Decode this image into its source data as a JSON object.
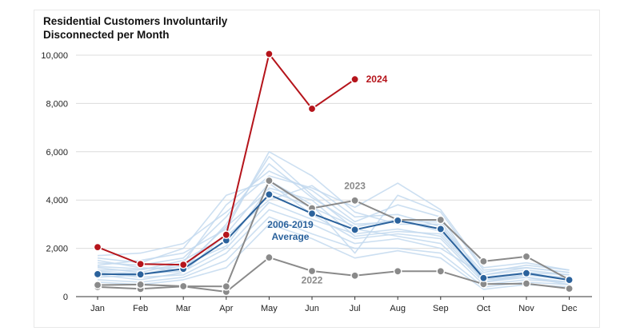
{
  "chart_data": {
    "type": "line",
    "title": "Residential Customers Involuntarily Disconnected per Month",
    "title_lines": [
      "Residential Customers Involuntarily",
      "Disconnected per Month"
    ],
    "categories": [
      "Jan",
      "Feb",
      "Mar",
      "Apr",
      "May",
      "Jun",
      "Jul",
      "Aug",
      "Sep",
      "Oct",
      "Nov",
      "Dec"
    ],
    "ylim": [
      0,
      10000
    ],
    "yticks": [
      0,
      2000,
      4000,
      6000,
      8000,
      10000
    ],
    "ytick_labels": [
      "0",
      "2,000",
      "4,000",
      "6,000",
      "8,000",
      "10,000"
    ],
    "grid": true,
    "series": [
      {
        "name": "2024",
        "color": "#b5141b",
        "role": "highlight",
        "values": [
          2050,
          1350,
          1320,
          2560,
          10050,
          7780,
          9000,
          null,
          null,
          null,
          null,
          null
        ]
      },
      {
        "name": "2006-2019 Average",
        "color": "#2b629c",
        "role": "highlight",
        "values": [
          930,
          920,
          1150,
          2330,
          4230,
          3440,
          2770,
          3150,
          2800,
          770,
          970,
          690
        ]
      },
      {
        "name": "2023",
        "color": "#8a8a8a",
        "role": "highlight",
        "values": [
          480,
          500,
          430,
          420,
          4800,
          3660,
          3980,
          3180,
          3180,
          1460,
          1660,
          700
        ]
      },
      {
        "name": "2022",
        "color": "#8a8a8a",
        "role": "highlight",
        "values": [
          400,
          320,
          420,
          200,
          1620,
          1060,
          870,
          1050,
          1050,
          520,
          540,
          330
        ]
      }
    ],
    "background_series_color": "#c3d9ee",
    "background_series": [
      [
        1500,
        1200,
        1100,
        3000,
        5800,
        4200,
        2800,
        2500,
        2200,
        500,
        700,
        600
      ],
      [
        1200,
        1000,
        1400,
        3800,
        5200,
        4400,
        3100,
        3800,
        3300,
        700,
        800,
        500
      ],
      [
        800,
        900,
        1300,
        2100,
        4500,
        4000,
        2500,
        2700,
        2600,
        800,
        1000,
        700
      ],
      [
        1300,
        1500,
        1800,
        2800,
        6000,
        5000,
        3500,
        3000,
        3000,
        600,
        900,
        800
      ],
      [
        1000,
        800,
        900,
        1800,
        3600,
        3000,
        2200,
        2400,
        2000,
        900,
        1100,
        900
      ],
      [
        1600,
        1400,
        2000,
        4200,
        4800,
        3800,
        1800,
        4200,
        3500,
        1100,
        1200,
        1000
      ],
      [
        700,
        600,
        800,
        1500,
        3300,
        2600,
        2000,
        2000,
        1800,
        400,
        600,
        500
      ],
      [
        1100,
        1100,
        1500,
        2500,
        4000,
        4600,
        3300,
        3400,
        2900,
        1000,
        1300,
        1100
      ],
      [
        900,
        700,
        1000,
        2600,
        4700,
        3400,
        2400,
        2600,
        2400,
        600,
        800,
        600
      ],
      [
        1400,
        1300,
        1600,
        3300,
        5500,
        4100,
        3000,
        3100,
        3100,
        800,
        1000,
        900
      ],
      [
        600,
        500,
        700,
        1200,
        3000,
        2400,
        1600,
        1900,
        1600,
        300,
        500,
        400
      ],
      [
        1250,
        1150,
        1250,
        2900,
        4400,
        3700,
        2900,
        3200,
        2700,
        900,
        1200,
        1000
      ],
      [
        1050,
        950,
        1050,
        2000,
        3900,
        3200,
        2600,
        2800,
        2500,
        700,
        900,
        700
      ],
      [
        1700,
        1800,
        2200,
        3500,
        5000,
        4500,
        3700,
        4700,
        3600,
        1200,
        1400,
        1100
      ]
    ],
    "annotations": [
      {
        "text": "2024",
        "color": "#b5141b",
        "x": "Jul",
        "y": 9000,
        "anchor": "start",
        "dx": 14,
        "dy": 4
      },
      {
        "text": "2023",
        "color": "#8a8a8a",
        "x": "Jul",
        "y": 4450,
        "anchor": "middle",
        "dx": 0,
        "dy": 0
      },
      {
        "text": "2006-2019",
        "color": "#2b629c",
        "x": "Jun",
        "y": 2850,
        "anchor": "middle",
        "dx": -27,
        "dy": 0
      },
      {
        "text": "Average",
        "color": "#2b629c",
        "x": "Jun",
        "y": 2350,
        "anchor": "middle",
        "dx": -27,
        "dy": 0
      },
      {
        "text": "2022",
        "color": "#8a8a8a",
        "x": "Jun",
        "y": 550,
        "anchor": "middle",
        "dx": 0,
        "dy": 0
      }
    ]
  }
}
